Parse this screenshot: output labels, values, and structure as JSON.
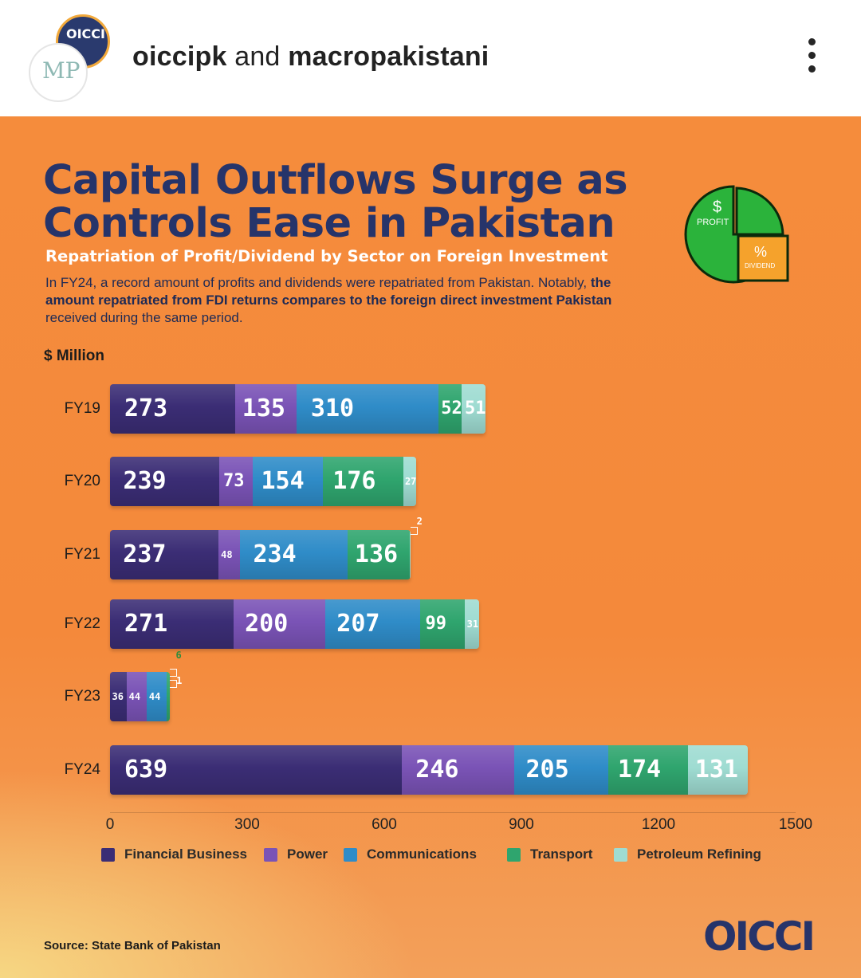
{
  "header": {
    "account_name_1": "oiccipk",
    "and_text": "and",
    "account_name_2": "macropakistani",
    "avatar_back_text": "OICCI",
    "avatar_front_text": "MP"
  },
  "post": {
    "title": "Capital Outflows Surge as Controls Ease in Pakistan",
    "subtitle": "Repatriation of Profit/Dividend by Sector on Foreign Investment",
    "desc_1": "In FY24, a record amount of profits and dividends were repatriated from Pakistan. Notably, ",
    "desc_bold": "the amount repatriated from FDI returns compares to the foreign direct investment Pakistan",
    "desc_2": " received during the same period.",
    "pie_label_profit": "PROFIT",
    "pie_label_dividend": "DIVIDEND",
    "pie_symbol_profit": "$",
    "pie_symbol_dividend": "%",
    "source": "Source: State Bank of Pakistan",
    "logo": "OICCI"
  },
  "colors": {
    "Financial Business": "#3b2d75",
    "Power": "#7a53b6",
    "Communications": "#2f8cc8",
    "Transport": "#2fa56e",
    "Petroleum Refining": "#9fdcd2"
  },
  "chart_data": {
    "type": "bar",
    "orientation": "horizontal",
    "stacked": true,
    "title": "",
    "ylabel": "$ Million",
    "categories": [
      "FY19",
      "FY20",
      "FY21",
      "FY22",
      "FY23",
      "FY24"
    ],
    "series": [
      {
        "name": "Financial Business",
        "values": [
          273,
          239,
          237,
          271,
          36,
          639
        ]
      },
      {
        "name": "Power",
        "values": [
          135,
          73,
          48,
          200,
          44,
          246
        ]
      },
      {
        "name": "Communications",
        "values": [
          310,
          154,
          234,
          207,
          44,
          205
        ]
      },
      {
        "name": "Transport",
        "values": [
          52,
          176,
          136,
          99,
          6,
          174
        ]
      },
      {
        "name": "Petroleum Refining",
        "values": [
          51,
          27,
          2,
          31,
          1,
          131
        ]
      }
    ],
    "xlim": [
      0,
      1500
    ],
    "xticks": [
      0,
      300,
      600,
      900,
      1200,
      1500
    ],
    "legend_position": "bottom",
    "grid": false
  }
}
